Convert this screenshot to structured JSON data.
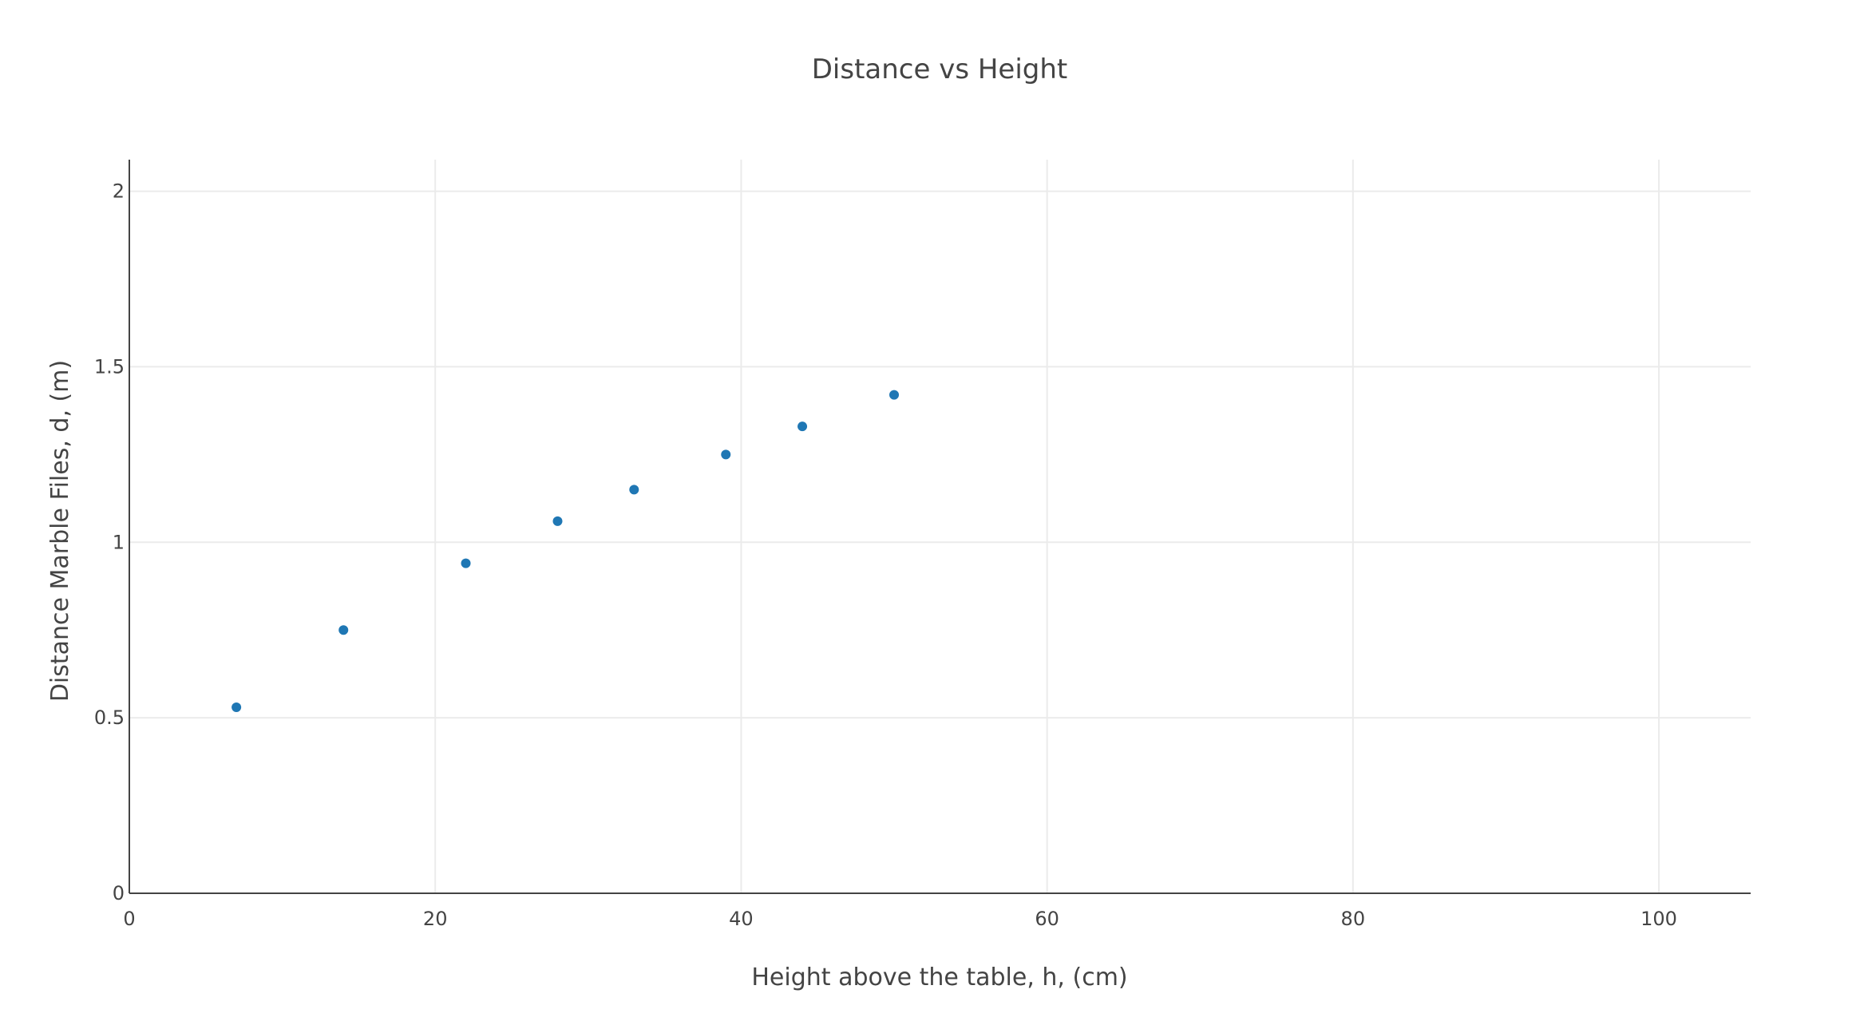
{
  "chart_data": {
    "type": "scatter",
    "title": "Distance vs Height",
    "xlabel": "Height above the table, h, (cm)",
    "ylabel": "Distance Marble Files, d, (m)",
    "xlim": [
      0,
      106
    ],
    "ylim": [
      0,
      2.09
    ],
    "x_ticks": [
      0,
      20,
      40,
      60,
      80,
      100
    ],
    "x_tick_labels": [
      "0",
      "20",
      "40",
      "60",
      "80",
      "100"
    ],
    "y_ticks": [
      0,
      0.5,
      1,
      1.5,
      2
    ],
    "y_tick_labels": [
      "0",
      "0.5",
      "1",
      "1.5",
      "2"
    ],
    "grid": true,
    "legend": "none",
    "marker_color": "#1f77b4",
    "series": [
      {
        "x": [
          7,
          14,
          22,
          28,
          33,
          39,
          44,
          50
        ],
        "y": [
          0.53,
          0.75,
          0.94,
          1.06,
          1.15,
          1.25,
          1.33,
          1.42
        ]
      }
    ]
  }
}
